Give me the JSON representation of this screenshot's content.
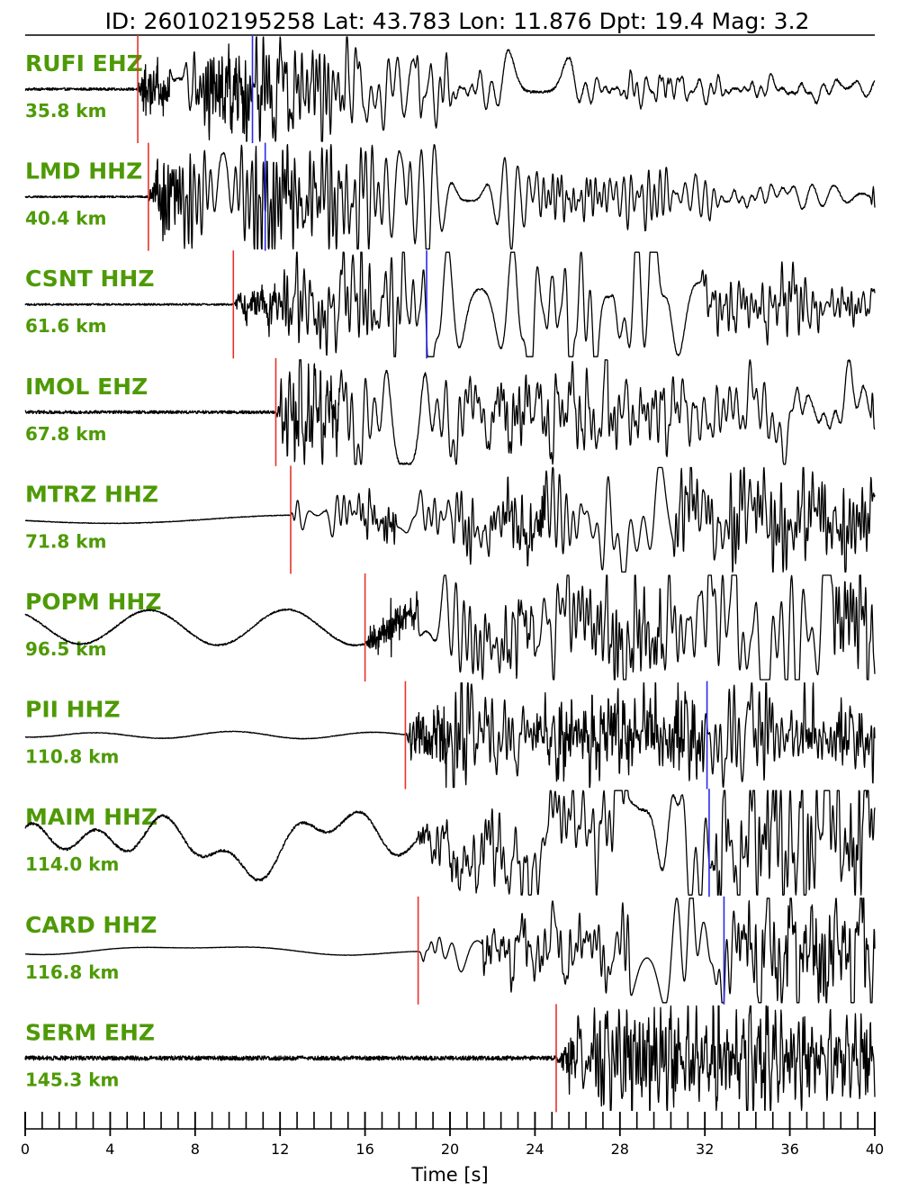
{
  "title": "ID: 260102195258 Lat:  43.783 Lon:  11.876 Dpt:    19.4 Mag:   3.2",
  "chart_data": {
    "type": "line",
    "xlabel": "Time [s]",
    "xlim": [
      0,
      40
    ],
    "x_ticks": [
      0,
      4,
      8,
      12,
      16,
      20,
      24,
      28,
      32,
      36,
      40
    ],
    "x_minor_step": 0.8,
    "colors": {
      "trace": "#000000",
      "p_pick": "#e8322a",
      "s_pick": "#2a2ae8",
      "label": "#4e9a06"
    },
    "stations": [
      {
        "name": "RUFI EHZ",
        "distance": "35.8 km",
        "p_pick": 5.3,
        "s_pick": 10.7,
        "onset": 5.3,
        "noise_amp": 0.04,
        "noise_type": "flat",
        "signal": [
          [
            0,
            0.3,
            24
          ],
          [
            1.5,
            0.35,
            13
          ],
          [
            5,
            0.85,
            7
          ],
          [
            13,
            0.45,
            5
          ],
          [
            25,
            0.18,
            3
          ],
          [
            35,
            0.1,
            2.5
          ]
        ]
      },
      {
        "name": "LMD HHZ",
        "distance": "40.4 km",
        "p_pick": 5.8,
        "s_pick": 11.3,
        "onset": 5.8,
        "noise_amp": 0.03,
        "noise_type": "flat",
        "signal": [
          [
            0,
            0.7,
            14
          ],
          [
            5.5,
            0.95,
            8
          ],
          [
            12,
            0.65,
            6
          ],
          [
            20,
            0.3,
            4
          ],
          [
            34,
            0.15,
            3
          ]
        ]
      },
      {
        "name": "CSNT HHZ",
        "distance": "61.6 km",
        "p_pick": 9.8,
        "s_pick": 18.9,
        "onset": 9.8,
        "noise_amp": 0.03,
        "noise_type": "flat",
        "signal": [
          [
            0,
            0.25,
            4
          ],
          [
            2,
            0.55,
            5
          ],
          [
            9,
            0.85,
            4
          ],
          [
            15,
            0.9,
            3
          ],
          [
            22,
            0.45,
            2.5
          ],
          [
            30,
            0.25,
            2.5
          ]
        ]
      },
      {
        "name": "IMOL EHZ",
        "distance": "67.8 km",
        "p_pick": 11.8,
        "s_pick": null,
        "onset": 11.8,
        "noise_amp": 0.05,
        "noise_type": "flat",
        "signal": [
          [
            0,
            0.9,
            9
          ],
          [
            3,
            0.75,
            6
          ],
          [
            10,
            0.6,
            4
          ],
          [
            20,
            0.5,
            3.5
          ],
          [
            28,
            0.45,
            3
          ]
        ]
      },
      {
        "name": "MTRZ HHZ",
        "distance": "71.8 km",
        "p_pick": 12.5,
        "s_pick": null,
        "onset": 12.5,
        "noise_amp": 0.12,
        "noise_type": "long",
        "signal": [
          [
            0,
            0.25,
            9
          ],
          [
            5,
            0.3,
            6
          ],
          [
            12,
            0.6,
            3.5
          ],
          [
            18,
            0.75,
            3
          ],
          [
            26,
            0.6,
            3
          ]
        ]
      },
      {
        "name": "POPM HHZ",
        "distance": "96.5 km",
        "p_pick": 16.0,
        "s_pick": null,
        "onset": 16.0,
        "noise_amp": 0.3,
        "noise_type": "long",
        "signal": [
          [
            0,
            0.15,
            10
          ],
          [
            2.5,
            0.4,
            7
          ],
          [
            8,
            0.6,
            5
          ],
          [
            14,
            0.85,
            3.5
          ],
          [
            22,
            0.95,
            3
          ]
        ]
      },
      {
        "name": "PII HHZ",
        "distance": "110.8 km",
        "p_pick": 17.9,
        "s_pick": 32.1,
        "onset": 17.9,
        "noise_amp": 0.12,
        "noise_type": "long",
        "signal": [
          [
            0,
            0.3,
            5
          ],
          [
            2,
            0.95,
            5.5
          ],
          [
            6,
            0.5,
            5
          ],
          [
            14,
            0.8,
            5
          ],
          [
            19,
            0.5,
            4
          ]
        ]
      },
      {
        "name": "MAIM HHZ",
        "distance": "114.0 km",
        "p_pick": null,
        "s_pick": 32.2,
        "onset": 18.4,
        "noise_amp": 0.5,
        "noise_type": "swell",
        "signal": [
          [
            0,
            0.3,
            4
          ],
          [
            3,
            0.6,
            4
          ],
          [
            10,
            0.5,
            3.5
          ],
          [
            14,
            0.8,
            3
          ],
          [
            18,
            0.95,
            3
          ]
        ]
      },
      {
        "name": "CARD HHZ",
        "distance": "116.8 km",
        "p_pick": 18.5,
        "s_pick": 32.9,
        "onset": 18.5,
        "noise_amp": 0.08,
        "noise_type": "long",
        "signal": [
          [
            0,
            0.15,
            8
          ],
          [
            3,
            0.35,
            7
          ],
          [
            10,
            0.45,
            6
          ],
          [
            15,
            0.65,
            5
          ],
          [
            19,
            0.9,
            4
          ]
        ]
      },
      {
        "name": "SERM EHZ",
        "distance": "145.3 km",
        "p_pick": 25.0,
        "s_pick": null,
        "onset": 25.0,
        "noise_amp": 0.07,
        "noise_type": "flat",
        "signal": [
          [
            0,
            0.25,
            8
          ],
          [
            1,
            0.75,
            6
          ],
          [
            4,
            0.9,
            5
          ],
          [
            8,
            0.85,
            5
          ],
          [
            14,
            0.7,
            5
          ]
        ]
      }
    ]
  }
}
